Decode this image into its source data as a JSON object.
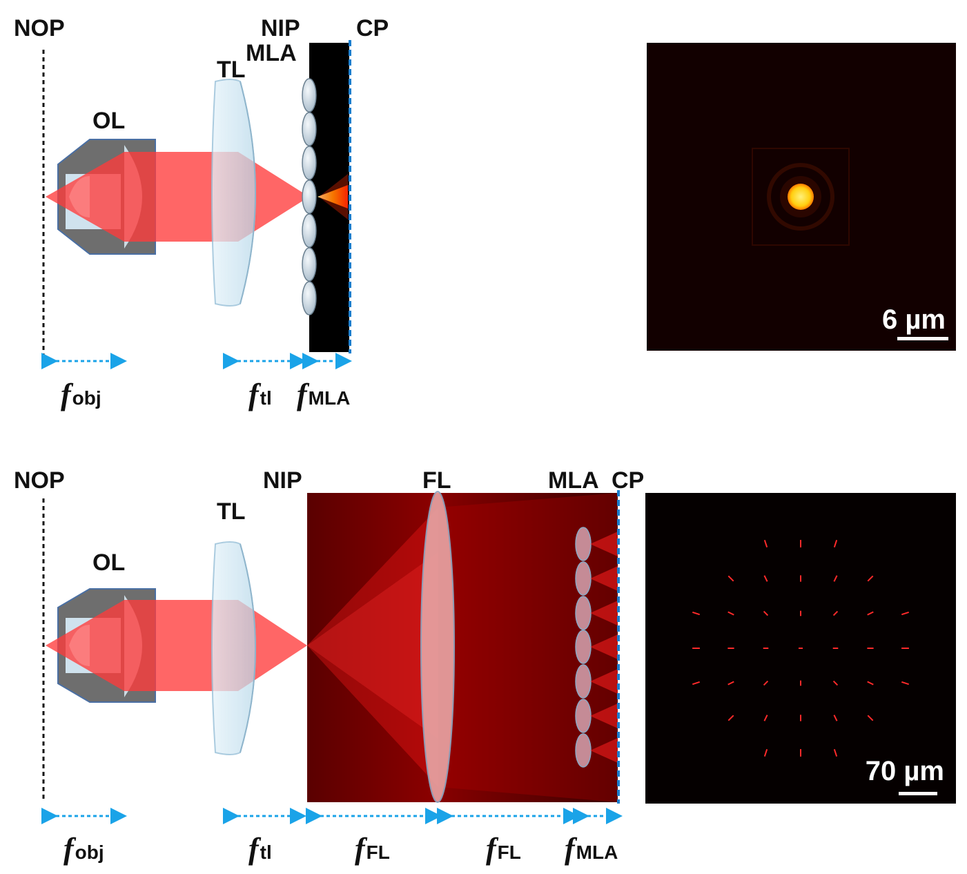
{
  "top": {
    "labels": {
      "nop": "NOP",
      "ol": "OL",
      "tl": "TL",
      "nip": "NIP",
      "mla": "MLA",
      "cp": "CP"
    },
    "focal": [
      {
        "main": "f",
        "sub": "obj"
      },
      {
        "main": "f",
        "sub": "tl"
      },
      {
        "main": "f",
        "sub": "MLA"
      }
    ],
    "scalebar": "6 µm"
  },
  "bottom": {
    "labels": {
      "nop": "NOP",
      "ol": "OL",
      "tl": "TL",
      "nip": "NIP",
      "fl": "FL",
      "mla": "MLA",
      "cp": "CP"
    },
    "focal": [
      {
        "main": "f",
        "sub": "obj"
      },
      {
        "main": "f",
        "sub": "tl"
      },
      {
        "main": "f",
        "sub": "FL"
      },
      {
        "main": "f",
        "sub": "FL"
      },
      {
        "main": "f",
        "sub": "MLA"
      }
    ],
    "scalebar": "70 µm"
  },
  "colors": {
    "beam": "#ff3b3b",
    "arrow": "#1aa3e8",
    "lens": "#cfe6f2",
    "objective": "#6e6e6e",
    "psf": "#ffd21a"
  }
}
